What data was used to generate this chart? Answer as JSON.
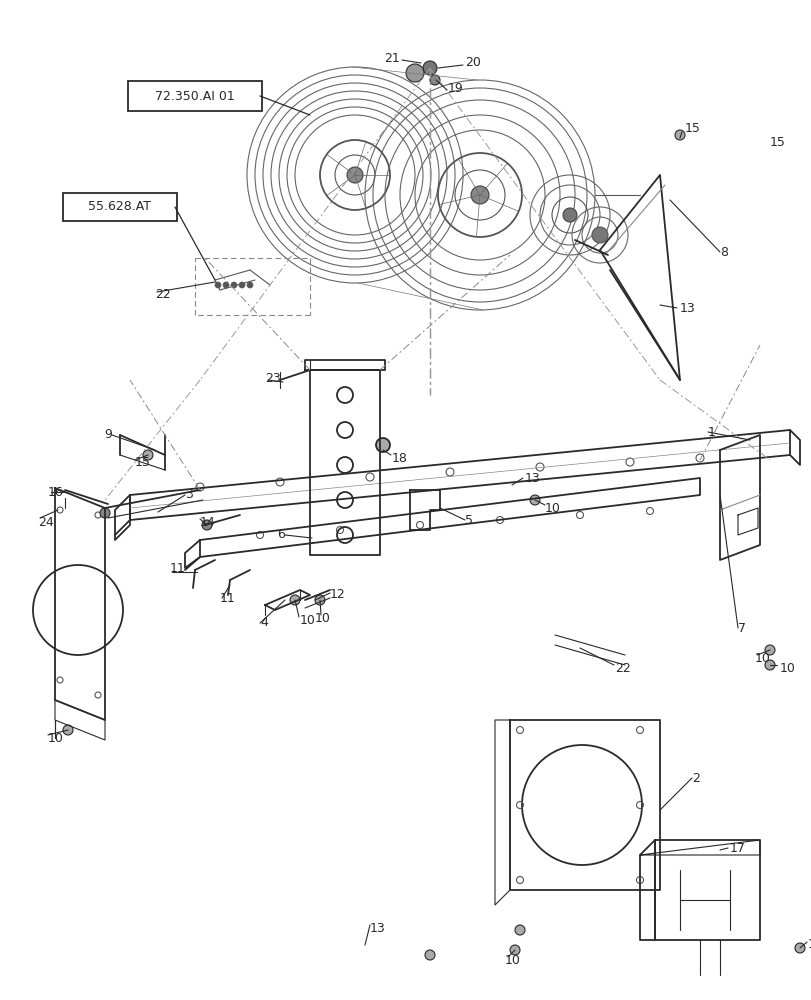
{
  "bg_color": "#ffffff",
  "line_color": "#2a2a2a",
  "fig_width": 8.12,
  "fig_height": 10.0,
  "dpi": 100,
  "box1_text": "72.350.AI 01",
  "box2_text": "55.628.AT",
  "lc": "#2a2a2a",
  "gray": "#888888",
  "dgray": "#555555",
  "lgray": "#aaaaaa"
}
